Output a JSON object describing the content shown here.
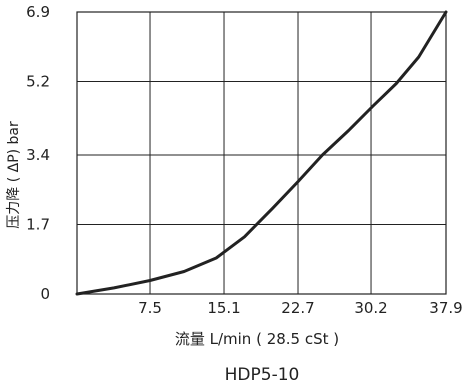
{
  "chart_data": {
    "type": "line",
    "title": "",
    "subtitle": "HDP5-10",
    "xlabel": "流量 L/min ( 28.5 cSt )",
    "ylabel": "压力降 ( ΔP) bar",
    "xlim": [
      0,
      37.9
    ],
    "ylim": [
      0,
      6.9
    ],
    "x_ticks": [
      7.5,
      15.1,
      22.7,
      30.2,
      37.9
    ],
    "x_tick_labels": [
      "7.5",
      "15.1",
      "22.7",
      "30.2",
      "37.9"
    ],
    "y_ticks": [
      0,
      1.7,
      3.4,
      5.2,
      6.9
    ],
    "y_tick_labels": [
      "0",
      "1.7",
      "3.4",
      "5.2",
      "6.9"
    ],
    "grid": true,
    "series": [
      {
        "x": [
          0,
          3.8,
          7.5,
          11.0,
          14.3,
          17.2,
          20.1,
          22.7,
          25.2,
          27.9,
          30.4,
          32.8,
          35.1,
          37.9
        ],
        "y": [
          0,
          0.15,
          0.33,
          0.55,
          0.88,
          1.4,
          2.1,
          2.75,
          3.4,
          4.0,
          4.6,
          5.15,
          5.8,
          6.9
        ]
      }
    ]
  },
  "colors": {
    "line": "#222222",
    "grid": "#222222",
    "background": "#ffffff"
  }
}
